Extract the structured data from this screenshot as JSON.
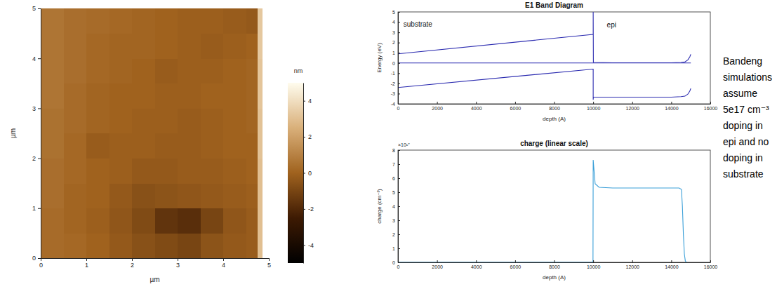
{
  "chart_data": [
    {
      "type": "heatmap",
      "x_label": "µm",
      "y_label": "µm",
      "xlim": [
        0,
        5
      ],
      "ylim": [
        0,
        5
      ],
      "xticks": [
        0,
        1,
        2,
        3,
        4,
        5
      ],
      "yticks": [
        0,
        1,
        2,
        3,
        4,
        5
      ],
      "x_edges": [
        0,
        0.5,
        1,
        1.5,
        2,
        2.5,
        3,
        3.5,
        4,
        4.5,
        4.75,
        4.85
      ],
      "y_edges": [
        0,
        0.5,
        1,
        1.5,
        2,
        2.5,
        3,
        3.5,
        4,
        4.5,
        5
      ],
      "z": [
        [
          0.3,
          0.2,
          0,
          -0.3,
          -0.6,
          -0.8,
          -1.0,
          -0.5,
          -0.3,
          -0.2,
          3.0
        ],
        [
          0.3,
          0.1,
          -0.1,
          -0.4,
          -0.8,
          -1.6,
          -1.8,
          -1.0,
          -0.4,
          -0.2,
          3.0
        ],
        [
          0.4,
          0.1,
          0,
          -0.3,
          -0.6,
          -0.5,
          -0.4,
          -0.3,
          -0.2,
          -0.1,
          3.0
        ],
        [
          0.4,
          0.2,
          0,
          -0.1,
          -0.3,
          -0.3,
          -0.2,
          -0.2,
          -0.1,
          0,
          3.0
        ],
        [
          0.5,
          0.2,
          -0.2,
          -0.1,
          -0.1,
          -0.2,
          -0.2,
          -0.1,
          0,
          0,
          3.1
        ],
        [
          0.5,
          0.3,
          0.1,
          0,
          -0.1,
          -0.1,
          -0.2,
          -0.1,
          0,
          0.1,
          3.1
        ],
        [
          0.6,
          0.3,
          0.1,
          0,
          0,
          -0.1,
          -0.1,
          0,
          0,
          0.1,
          3.2
        ],
        [
          0.6,
          0.4,
          0.2,
          0.1,
          0,
          -0.2,
          -0.1,
          -0.1,
          0,
          0.1,
          3.2
        ],
        [
          0.6,
          0.4,
          0.2,
          0.1,
          0.1,
          0,
          -0.1,
          -0.2,
          -0.1,
          0,
          3.3
        ],
        [
          0.6,
          0.4,
          0.3,
          0.2,
          0.1,
          0,
          -0.1,
          -0.1,
          -0.2,
          -0.3,
          3.3
        ]
      ],
      "colorbar_range": [
        -5,
        5
      ],
      "colorbar_ticks": [
        -4,
        -2,
        0,
        2,
        4
      ],
      "colorbar_label": "nm"
    },
    {
      "type": "line",
      "title": "E1 Band Diagram",
      "x_label": "depth (A)",
      "y_label": "Energy (eV)",
      "xlim": [
        0,
        16000
      ],
      "ylim": [
        -4,
        5
      ],
      "xticks": [
        0,
        2000,
        4000,
        6000,
        8000,
        10000,
        12000,
        14000,
        16000
      ],
      "yticks": [
        -4,
        -3,
        -2,
        -1,
        0,
        1,
        2,
        3,
        4,
        5
      ],
      "series": [
        {
          "color": "#2b2bb0",
          "x": [
            0,
            10000,
            10000,
            10010,
            11000,
            14000,
            14500,
            14700,
            14850,
            14950,
            15000
          ],
          "values": [
            0.9,
            2.8,
            5,
            0.05,
            0.02,
            0.02,
            0.05,
            0.1,
            0.3,
            0.6,
            0.85
          ]
        },
        {
          "color": "#2b2bb0",
          "x": [
            0,
            15000
          ],
          "values": [
            0,
            0
          ]
        },
        {
          "color": "#2b2bb0",
          "x": [
            0,
            10000,
            10000,
            10010,
            14000,
            14500,
            14700,
            14850,
            14950,
            15000
          ],
          "values": [
            -2.4,
            -0.6,
            -3.6,
            -3.35,
            -3.35,
            -3.3,
            -3.25,
            -3.05,
            -2.75,
            -2.5
          ]
        }
      ],
      "annotations": [
        {
          "text": "substrate",
          "x": 280,
          "y": 3.55
        },
        {
          "text": "epi",
          "x": 10700,
          "y": 3.5
        }
      ]
    },
    {
      "type": "line",
      "title": "charge (linear scale)",
      "x_label": "depth (A)",
      "y_label": "charge (cm⁻³)",
      "y_multiplier": "×10¹⁷",
      "xlim": [
        0,
        16000
      ],
      "ylim": [
        0,
        8
      ],
      "xticks": [
        0,
        2000,
        4000,
        6000,
        8000,
        10000,
        12000,
        14000,
        16000
      ],
      "yticks": [
        0,
        1,
        2,
        3,
        4,
        5,
        6,
        7,
        8
      ],
      "series": [
        {
          "color": "#3a9fd8",
          "x": [
            0,
            9990,
            10000,
            10100,
            10300,
            11000,
            14400,
            14520,
            14570,
            14620,
            14670,
            14720,
            14780
          ],
          "values": [
            0,
            0,
            7.3,
            5.6,
            5.35,
            5.3,
            5.3,
            5.2,
            4.0,
            2.0,
            0.6,
            0.1,
            0
          ]
        }
      ]
    }
  ],
  "note": {
    "lines": [
      "Bandeng",
      "simulations",
      "assume",
      "5e17 cm⁻³",
      "doping in",
      "epi and no",
      "doping in",
      "substrate"
    ]
  }
}
